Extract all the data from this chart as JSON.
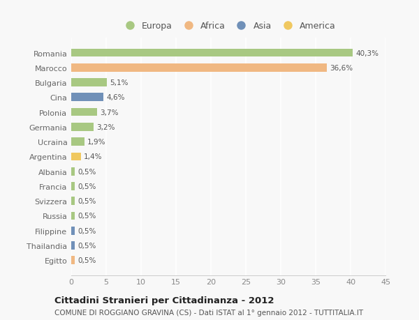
{
  "countries": [
    "Romania",
    "Marocco",
    "Bulgaria",
    "Cina",
    "Polonia",
    "Germania",
    "Ucraina",
    "Argentina",
    "Albania",
    "Francia",
    "Svizzera",
    "Russia",
    "Filippine",
    "Thailandia",
    "Egitto"
  ],
  "values": [
    40.3,
    36.6,
    5.1,
    4.6,
    3.7,
    3.2,
    1.9,
    1.4,
    0.5,
    0.5,
    0.5,
    0.5,
    0.5,
    0.5,
    0.5
  ],
  "labels": [
    "40,3%",
    "36,6%",
    "5,1%",
    "4,6%",
    "3,7%",
    "3,2%",
    "1,9%",
    "1,4%",
    "0,5%",
    "0,5%",
    "0,5%",
    "0,5%",
    "0,5%",
    "0,5%",
    "0,5%"
  ],
  "colors": [
    "#a8c882",
    "#f0b882",
    "#a8c882",
    "#7090b8",
    "#a8c882",
    "#a8c882",
    "#a8c882",
    "#f0c860",
    "#a8c882",
    "#a8c882",
    "#a8c882",
    "#a8c882",
    "#7090b8",
    "#7090b8",
    "#f0b882"
  ],
  "legend_labels": [
    "Europa",
    "Africa",
    "Asia",
    "America"
  ],
  "legend_colors": [
    "#a8c882",
    "#f0b882",
    "#7090b8",
    "#f0c860"
  ],
  "title_bold": "Cittadini Stranieri per Cittadinanza - 2012",
  "subtitle": "COMUNE DI ROGGIANO GRAVINA (CS) - Dati ISTAT al 1° gennaio 2012 - TUTTITALIA.IT",
  "xlim": [
    0,
    45
  ],
  "xticks": [
    0,
    5,
    10,
    15,
    20,
    25,
    30,
    35,
    40,
    45
  ],
  "bg_color": "#f8f8f8",
  "grid_color": "#ffffff"
}
